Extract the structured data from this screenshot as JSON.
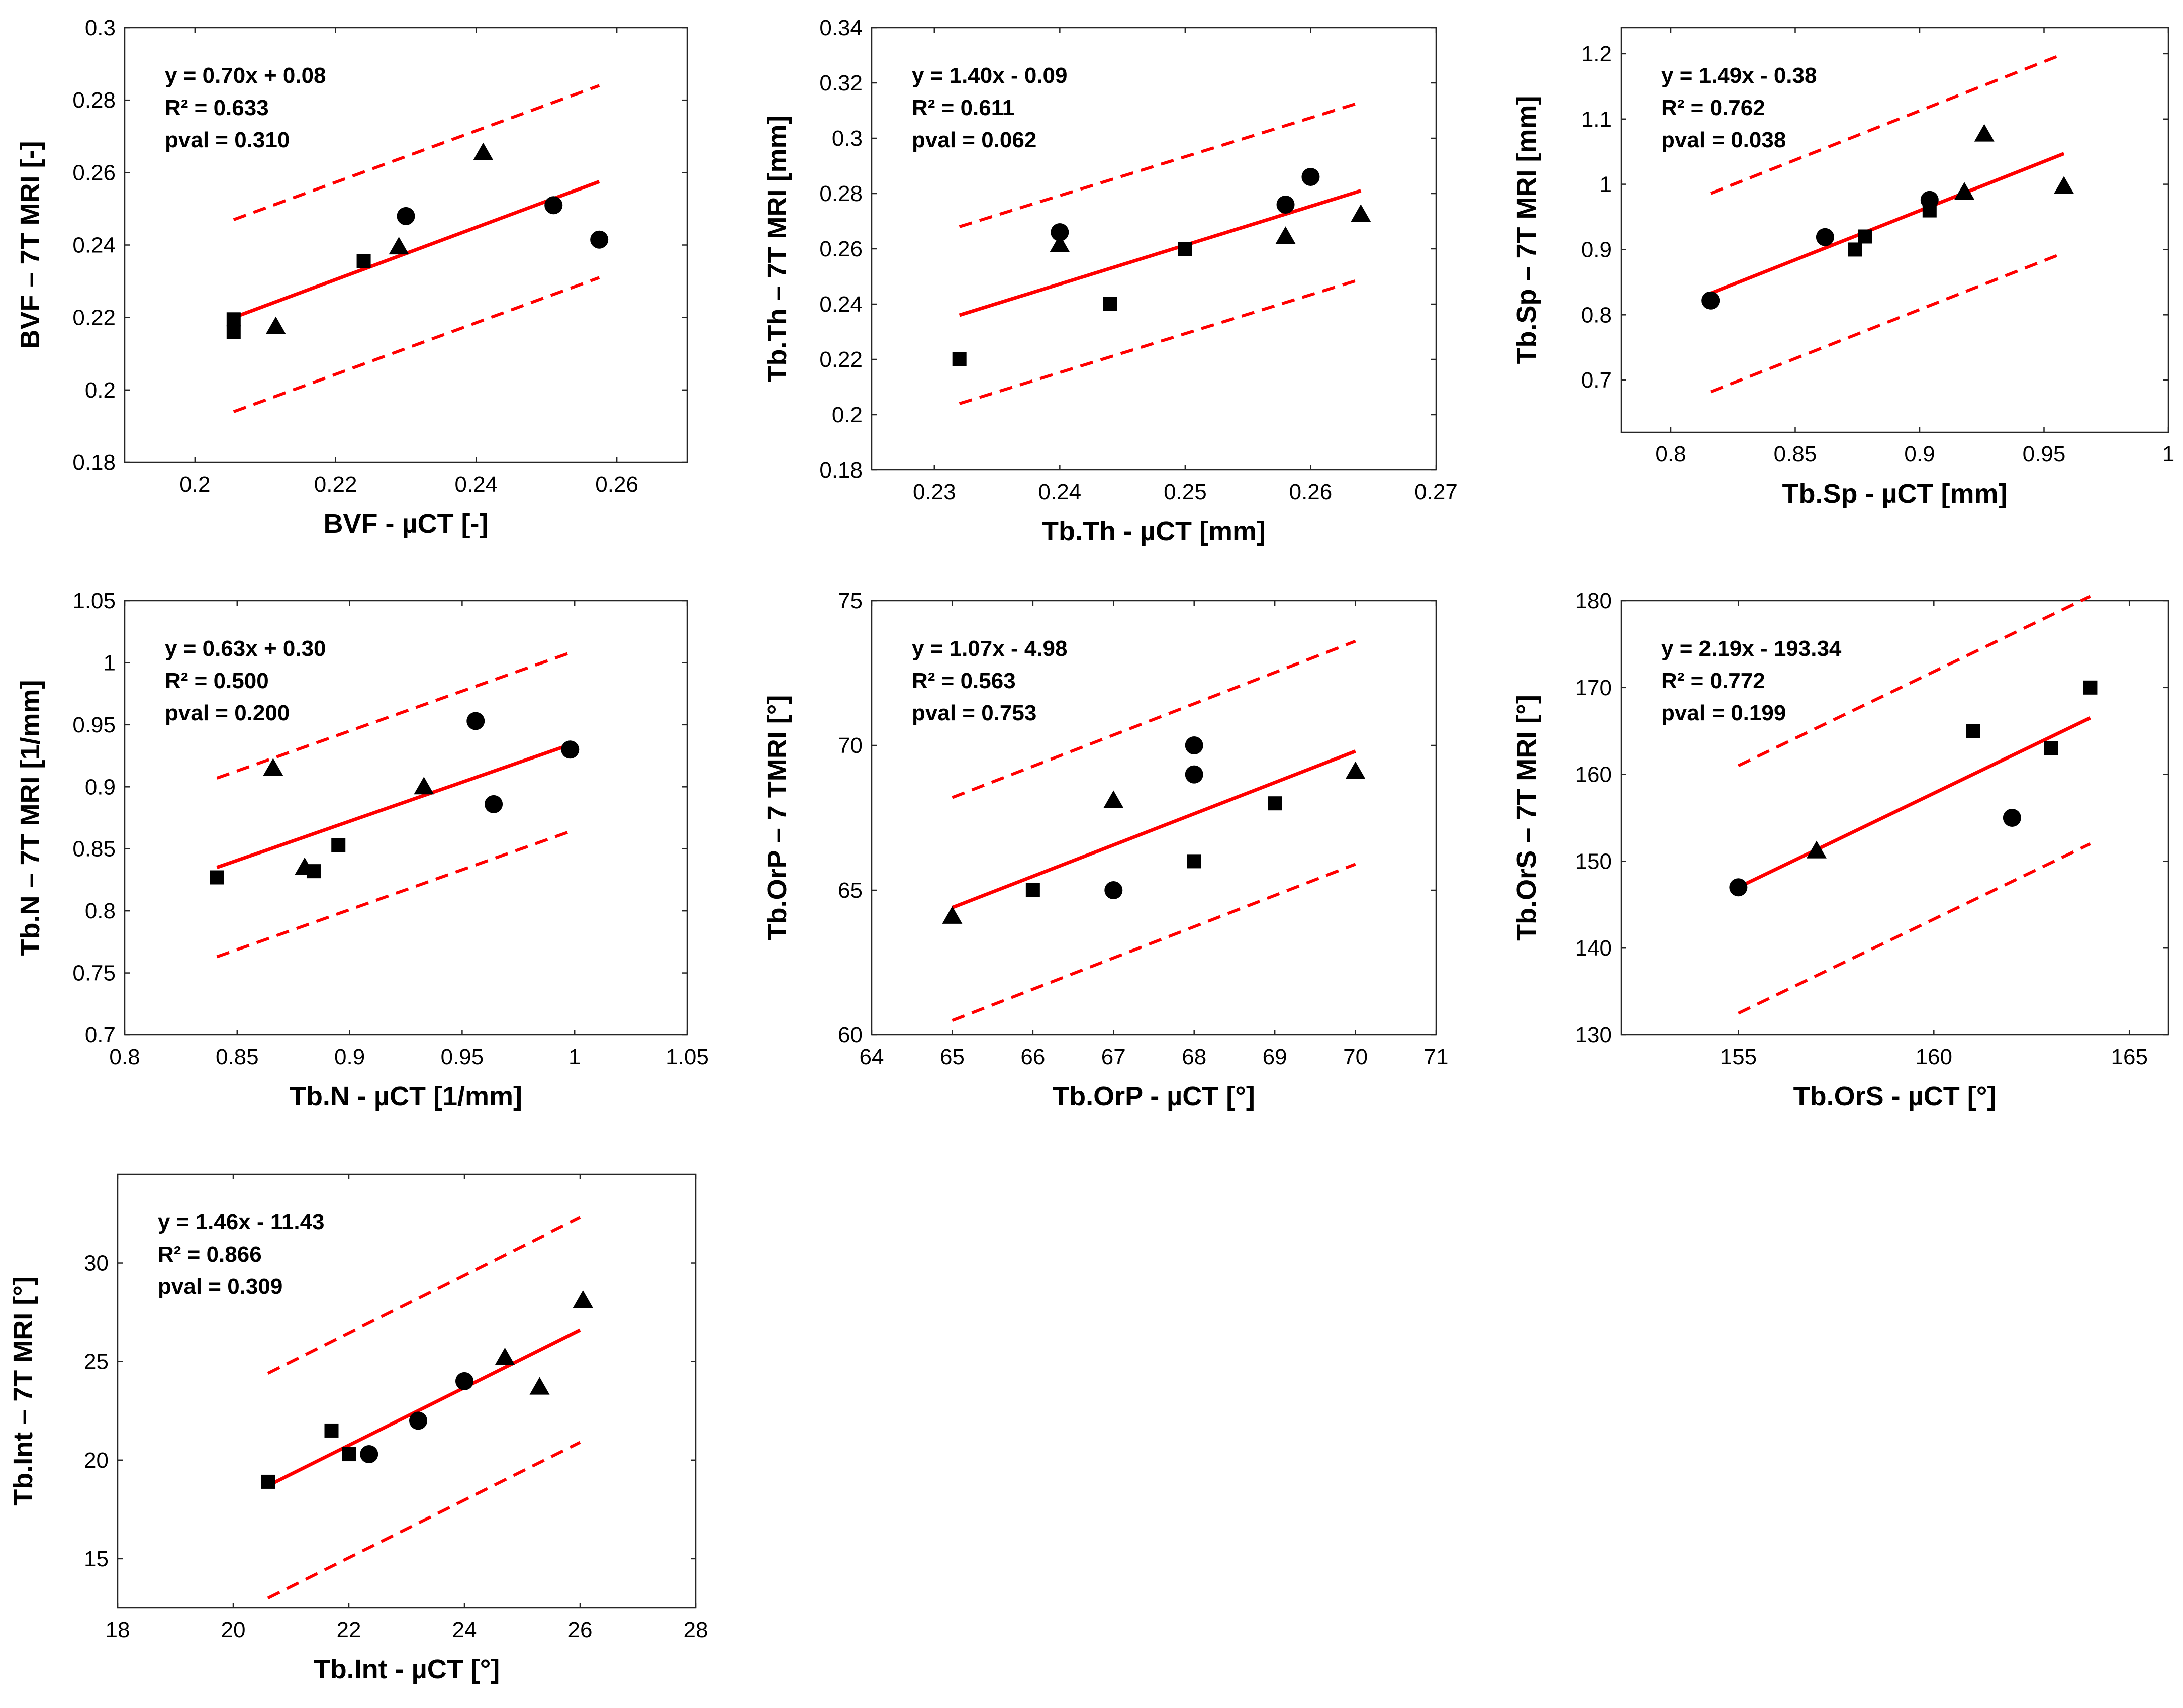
{
  "chart_data": [
    {
      "type": "scatter",
      "xlabel": "BVF - µCT [-]",
      "ylabel": "BVF – 7T MRI [-]",
      "xlim": [
        0.19,
        0.27
      ],
      "ylim": [
        0.18,
        0.3
      ],
      "xticks": [
        0.2,
        0.22,
        0.24,
        0.26
      ],
      "yticks": [
        0.18,
        0.2,
        0.22,
        0.24,
        0.26,
        0.28,
        0.3
      ],
      "xticklabels": [
        "0.2",
        "0.22",
        "0.24",
        "0.26"
      ],
      "yticklabels": [
        "0.18",
        "0.2",
        "0.22",
        "0.24",
        "0.26",
        "0.28",
        "0.3"
      ],
      "annotation": [
        "y = 0.70x + 0.08",
        "R² = 0.633",
        "pval = 0.310"
      ],
      "fit": {
        "slope": 0.7,
        "intercept": 0.08,
        "x": [
          0.2055,
          0.2575
        ],
        "y": [
          0.22,
          0.2575
        ]
      },
      "bound_upper": {
        "x": [
          0.2055,
          0.2575
        ],
        "y": [
          0.247,
          0.284
        ]
      },
      "bound_lower": {
        "x": [
          0.2055,
          0.2575
        ],
        "y": [
          0.194,
          0.231
        ]
      },
      "series": [
        {
          "name": "square",
          "points": [
            [
              0.2055,
              0.2195
            ],
            [
              0.2055,
              0.216
            ],
            [
              0.224,
              0.2355
            ]
          ]
        },
        {
          "name": "triangle",
          "points": [
            [
              0.2115,
              0.2175
            ],
            [
              0.229,
              0.2395
            ],
            [
              0.241,
              0.2655
            ]
          ]
        },
        {
          "name": "circle",
          "points": [
            [
              0.23,
              0.248
            ],
            [
              0.251,
              0.251
            ],
            [
              0.2575,
              0.2415
            ]
          ]
        }
      ]
    },
    {
      "type": "scatter",
      "xlabel": "Tb.Th - µCT [mm]",
      "ylabel": "Tb.Th – 7T MRI [mm]",
      "xlim": [
        0.225,
        0.27
      ],
      "ylim": [
        0.18,
        0.34
      ],
      "xticks": [
        0.23,
        0.24,
        0.25,
        0.26,
        0.27
      ],
      "yticks": [
        0.18,
        0.2,
        0.22,
        0.24,
        0.26,
        0.28,
        0.3,
        0.32,
        0.34
      ],
      "xticklabels": [
        "0.23",
        "0.24",
        "0.25",
        "0.26",
        "0.27"
      ],
      "yticklabels": [
        "0.18",
        "0.2",
        "0.22",
        "0.24",
        "0.26",
        "0.28",
        "0.3",
        "0.32",
        "0.34"
      ],
      "annotation": [
        "y = 1.40x - 0.09",
        "R² = 0.611",
        "pval = 0.062"
      ],
      "fit": {
        "slope": 1.4,
        "intercept": -0.09,
        "x": [
          0.232,
          0.264
        ],
        "y": [
          0.236,
          0.281
        ]
      },
      "bound_upper": {
        "x": [
          0.232,
          0.264
        ],
        "y": [
          0.268,
          0.313
        ]
      },
      "bound_lower": {
        "x": [
          0.232,
          0.264
        ],
        "y": [
          0.204,
          0.249
        ]
      },
      "series": [
        {
          "name": "square",
          "points": [
            [
              0.232,
              0.22
            ],
            [
              0.244,
              0.24
            ],
            [
              0.25,
              0.26
            ]
          ]
        },
        {
          "name": "triangle",
          "points": [
            [
              0.24,
              0.2615
            ],
            [
              0.258,
              0.2645
            ],
            [
              0.264,
              0.2725
            ]
          ]
        },
        {
          "name": "circle",
          "points": [
            [
              0.24,
              0.266
            ],
            [
              0.258,
              0.276
            ],
            [
              0.26,
              0.286
            ]
          ]
        }
      ]
    },
    {
      "type": "scatter",
      "xlabel": "Tb.Sp - µCT [mm]",
      "ylabel": "Tb.Sp – 7T MRI [mm]",
      "xlim": [
        0.78,
        1.0
      ],
      "ylim": [
        0.62,
        1.24
      ],
      "xticks": [
        0.8,
        0.85,
        0.9,
        0.95,
        1.0
      ],
      "yticks": [
        0.7,
        0.8,
        0.9,
        1.0,
        1.1,
        1.2
      ],
      "xticklabels": [
        "0.8",
        "0.85",
        "0.9",
        "0.95",
        "1"
      ],
      "yticklabels": [
        "0.7",
        "0.8",
        "0.9",
        "1",
        "1.1",
        "1.2"
      ],
      "annotation": [
        "y = 1.49x - 0.38",
        "R² = 0.762",
        "pval = 0.038"
      ],
      "fit": {
        "slope": 1.49,
        "intercept": -0.38,
        "x": [
          0.816,
          0.958
        ],
        "y": [
          0.833,
          1.047
        ]
      },
      "bound_upper": {
        "x": [
          0.816,
          0.958
        ],
        "y": [
          0.986,
          1.2
        ]
      },
      "bound_lower": {
        "x": [
          0.816,
          0.958
        ],
        "y": [
          0.682,
          0.895
        ]
      },
      "series": [
        {
          "name": "square",
          "points": [
            [
              0.874,
              0.9
            ],
            [
              0.878,
              0.92
            ],
            [
              0.904,
              0.96
            ]
          ]
        },
        {
          "name": "triangle",
          "points": [
            [
              0.918,
              0.988
            ],
            [
              0.926,
              1.077
            ],
            [
              0.958,
              0.997
            ]
          ]
        },
        {
          "name": "circle",
          "points": [
            [
              0.816,
              0.822
            ],
            [
              0.862,
              0.919
            ],
            [
              0.904,
              0.976
            ]
          ]
        }
      ]
    },
    {
      "type": "scatter",
      "xlabel": "Tb.N - µCT [1/mm]",
      "ylabel": "Tb.N – 7T MRI [1/mm]",
      "xlim": [
        0.8,
        1.05
      ],
      "ylim": [
        0.7,
        1.05
      ],
      "xticks": [
        0.8,
        0.85,
        0.9,
        0.95,
        1.0,
        1.05
      ],
      "yticks": [
        0.7,
        0.75,
        0.8,
        0.85,
        0.9,
        0.95,
        1.0,
        1.05
      ],
      "xticklabels": [
        "0.8",
        "0.85",
        "0.9",
        "0.95",
        "1",
        "1.05"
      ],
      "yticklabels": [
        "0.7",
        "0.75",
        "0.8",
        "0.85",
        "0.9",
        "0.95",
        "1",
        "1.05"
      ],
      "annotation": [
        "y = 0.63x + 0.30",
        "R² = 0.500",
        "pval = 0.200"
      ],
      "fit": {
        "slope": 0.63,
        "intercept": 0.3,
        "x": [
          0.841,
          0.998
        ],
        "y": [
          0.835,
          0.934
        ]
      },
      "bound_upper": {
        "x": [
          0.841,
          0.998
        ],
        "y": [
          0.907,
          1.008
        ]
      },
      "bound_lower": {
        "x": [
          0.841,
          0.998
        ],
        "y": [
          0.763,
          0.864
        ]
      },
      "series": [
        {
          "name": "square",
          "points": [
            [
              0.841,
              0.827
            ],
            [
              0.884,
              0.832
            ],
            [
              0.895,
              0.853
            ]
          ]
        },
        {
          "name": "triangle",
          "points": [
            [
              0.866,
              0.915
            ],
            [
              0.88,
              0.835
            ],
            [
              0.933,
              0.9
            ]
          ]
        },
        {
          "name": "circle",
          "points": [
            [
              0.956,
              0.953
            ],
            [
              0.964,
              0.886
            ],
            [
              0.998,
              0.93
            ]
          ]
        }
      ]
    },
    {
      "type": "scatter",
      "xlabel": "Tb.OrP - µCT [°]",
      "ylabel": "Tb.OrP – 7 TMRI [°]",
      "xlim": [
        64,
        71
      ],
      "ylim": [
        60,
        75
      ],
      "xticks": [
        64,
        65,
        66,
        67,
        68,
        69,
        70,
        71
      ],
      "yticks": [
        60,
        65,
        70,
        75
      ],
      "xticklabels": [
        "64",
        "65",
        "66",
        "67",
        "68",
        "69",
        "70",
        "71"
      ],
      "yticklabels": [
        "60",
        "65",
        "70",
        "75"
      ],
      "annotation": [
        "y = 1.07x - 4.98",
        "R² = 0.563",
        "pval = 0.753"
      ],
      "fit": {
        "slope": 1.07,
        "intercept": -4.98,
        "x": [
          65,
          70
        ],
        "y": [
          64.4,
          69.8
        ]
      },
      "bound_upper": {
        "x": [
          65,
          70
        ],
        "y": [
          68.2,
          73.6
        ]
      },
      "bound_lower": {
        "x": [
          65,
          70
        ],
        "y": [
          60.5,
          65.9
        ]
      },
      "series": [
        {
          "name": "square",
          "points": [
            [
              66,
              65
            ],
            [
              68,
              66
            ],
            [
              69,
              68
            ]
          ]
        },
        {
          "name": "triangle",
          "points": [
            [
              65,
              64.1
            ],
            [
              67,
              68.1
            ],
            [
              70,
              69.1
            ]
          ]
        },
        {
          "name": "circle",
          "points": [
            [
              67,
              65
            ],
            [
              68,
              69
            ],
            [
              68,
              70
            ]
          ]
        }
      ]
    },
    {
      "type": "scatter",
      "xlabel": "Tb.OrS - µCT [°]",
      "ylabel": "Tb.OrS – 7T MRI [°]",
      "xlim": [
        152,
        166
      ],
      "ylim": [
        130,
        180
      ],
      "xticks": [
        155,
        160,
        165
      ],
      "yticks": [
        130,
        140,
        150,
        160,
        170,
        180
      ],
      "xticklabels": [
        "155",
        "160",
        "165"
      ],
      "yticklabels": [
        "130",
        "140",
        "150",
        "160",
        "170",
        "180"
      ],
      "annotation": [
        "y = 2.19x - 193.34",
        "R² = 0.772",
        "pval = 0.199"
      ],
      "fit": {
        "slope": 2.19,
        "intercept": -193.34,
        "x": [
          155,
          164
        ],
        "y": [
          147,
          166.5
        ]
      },
      "bound_upper": {
        "x": [
          155,
          164
        ],
        "y": [
          161,
          180.5
        ]
      },
      "bound_lower": {
        "x": [
          155,
          164
        ],
        "y": [
          132.5,
          152
        ]
      },
      "series": [
        {
          "name": "square",
          "points": [
            [
              161,
              165
            ],
            [
              163,
              163
            ],
            [
              164,
              170
            ]
          ]
        },
        {
          "name": "triangle",
          "points": [
            [
              157,
              151.2
            ]
          ]
        },
        {
          "name": "circle",
          "points": [
            [
              155,
              147
            ],
            [
              162,
              155
            ]
          ]
        }
      ]
    },
    {
      "type": "scatter",
      "xlabel": "Tb.Int - µCT [°]",
      "ylabel": "Tb.Int – 7T MRI [°]",
      "xlim": [
        18,
        28
      ],
      "ylim": [
        12.5,
        34.5
      ],
      "xticks": [
        18,
        20,
        22,
        24,
        26,
        28
      ],
      "yticks": [
        15,
        20,
        25,
        30
      ],
      "xticklabels": [
        "18",
        "20",
        "22",
        "24",
        "26",
        "28"
      ],
      "yticklabels": [
        "15",
        "20",
        "25",
        "30"
      ],
      "annotation": [
        "y = 1.46x - 11.43",
        "R² = 0.866",
        "pval = 0.309"
      ],
      "fit": {
        "slope": 1.46,
        "intercept": -11.43,
        "x": [
          20.6,
          26
        ],
        "y": [
          18.7,
          26.6
        ]
      },
      "bound_upper": {
        "x": [
          20.6,
          26
        ],
        "y": [
          24.4,
          32.3
        ]
      },
      "bound_lower": {
        "x": [
          20.6,
          26
        ],
        "y": [
          13,
          20.9
        ]
      },
      "series": [
        {
          "name": "square",
          "points": [
            [
              20.6,
              18.9
            ],
            [
              21.7,
              21.5
            ],
            [
              22,
              20.3
            ]
          ]
        },
        {
          "name": "triangle",
          "points": [
            [
              24.7,
              25.2
            ],
            [
              25.3,
              23.7
            ],
            [
              26.05,
              28.1
            ]
          ]
        },
        {
          "name": "circle",
          "points": [
            [
              22.35,
              20.3
            ],
            [
              23.2,
              22
            ],
            [
              24,
              24
            ]
          ]
        }
      ]
    }
  ]
}
